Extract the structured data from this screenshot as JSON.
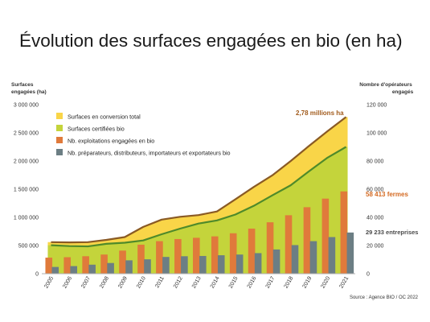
{
  "chart_data": {
    "type": "area",
    "title": "Évolution des surfaces engagées en bio (en ha)",
    "years": [
      "2005",
      "2006",
      "2007",
      "2008",
      "2009",
      "2010",
      "2011",
      "2012",
      "2013",
      "2014",
      "2015",
      "2016",
      "2017",
      "2018",
      "2019",
      "2020",
      "2021"
    ],
    "y_left": {
      "label_line1": "Surfaces",
      "label_line2": "engagées (ha)",
      "range": [
        0,
        3000000
      ],
      "tick_labels": [
        "0",
        "500 000",
        "1 000 000",
        "1 500 000",
        "2 000 000",
        "2 500 000",
        "3 000 000"
      ]
    },
    "y_right": {
      "label_line1": "Nombre d'opérateurs",
      "label_line2": "engagés",
      "range": [
        0,
        120000
      ],
      "tick_labels": [
        "0",
        "20 000",
        "40 000",
        "60 000",
        "80 000",
        "100 000",
        "120 000"
      ]
    },
    "grid": false,
    "legend_position": "top-left",
    "series": [
      {
        "name": "Surfaces en conversion total",
        "type": "area",
        "axis": "left",
        "color": "#f9d548",
        "values": [
          560000,
          555000,
          560000,
          600000,
          650000,
          830000,
          960000,
          1010000,
          1040000,
          1105000,
          1320000,
          1540000,
          1745000,
          2000000,
          2270000,
          2530000,
          2780000
        ]
      },
      {
        "name": "Surfaces certifiées bio",
        "type": "area",
        "axis": "left",
        "color": "#c4d43b",
        "values": [
          505000,
          490000,
          485000,
          530000,
          550000,
          590000,
          700000,
          800000,
          890000,
          945000,
          1050000,
          1205000,
          1390000,
          1570000,
          1820000,
          2060000,
          2250000
        ]
      },
      {
        "name": "Nb. exploitations engagées en bio",
        "type": "bar",
        "axis": "right",
        "color": "#e07a3b",
        "values": [
          11400,
          11700,
          12400,
          13600,
          16400,
          20600,
          23100,
          24600,
          25500,
          26500,
          28700,
          32000,
          36500,
          41500,
          47200,
          53300,
          58413
        ]
      },
      {
        "name": "Nb. préparateurs, distributeurs, importateurs et exportateurs bio",
        "type": "bar",
        "axis": "right",
        "color": "#6c7e84",
        "values": [
          4800,
          5400,
          6400,
          7600,
          9500,
          10200,
          11900,
          12400,
          12600,
          13100,
          13600,
          14600,
          17200,
          20300,
          23100,
          26000,
          29233
        ]
      }
    ],
    "annotations": [
      {
        "text": "2,78 millions ha",
        "color": "#a15b1c"
      },
      {
        "text": "58 413 fermes",
        "color": "#d46a22"
      },
      {
        "text": "29 233 entreprises",
        "color": "#4a4a4a"
      }
    ],
    "source": "Source : Agence BIO / OC 2022"
  }
}
